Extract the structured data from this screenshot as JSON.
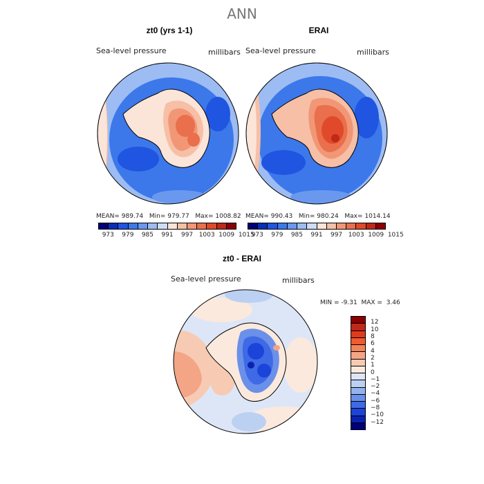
{
  "title": "ANN",
  "panels": [
    {
      "title": "zt0 (yrs 1-1)",
      "variable": "Sea-level pressure",
      "units": "millibars",
      "mean_label": "MEAN=",
      "mean": "989.74",
      "min_label": "Min=",
      "min": "979.77",
      "max_label": "Max=",
      "max": "1008.82"
    },
    {
      "title": "ERAI",
      "variable": "Sea-level pressure",
      "units": "millibars",
      "mean_label": "MEAN=",
      "mean": "990.43",
      "min_label": "Min=",
      "min": "980.24",
      "max_label": "Max=",
      "max": "1014.14"
    }
  ],
  "colorbar_top": {
    "ticks": [
      "973",
      "979",
      "985",
      "991",
      "997",
      "1003",
      "1009",
      "1015"
    ],
    "colors": [
      "#00007a",
      "#0a2fb5",
      "#1f55e0",
      "#3c78ea",
      "#6a98ee",
      "#9dbcf3",
      "#cfdcf6",
      "#fbe4d8",
      "#f6bfa6",
      "#f19776",
      "#ea6f4c",
      "#e04a2a",
      "#c0281a",
      "#8b0000"
    ]
  },
  "diff_panel": {
    "title": "zt0 - ERAI",
    "variable": "Sea-level pressure",
    "units": "millibars",
    "min_label": "MIN =",
    "min": "-9.31",
    "max_label": "MAX =",
    "max": "3.46"
  },
  "colorbar_diff": {
    "ticks": [
      "12",
      "10",
      "8",
      "6",
      "4",
      "2",
      "1",
      "0",
      "−1",
      "−2",
      "−4",
      "−6",
      "−8",
      "−10",
      "−12"
    ],
    "colors": [
      "#8b0000",
      "#c0281a",
      "#e03a1e",
      "#ef5a2e",
      "#f28458",
      "#f4a585",
      "#f7cbb3",
      "#fbe9dd",
      "#dde6f7",
      "#bcd0f2",
      "#94b2ee",
      "#6a90ea",
      "#3f6ae6",
      "#1c44d8",
      "#0a22b0",
      "#00007a"
    ]
  }
}
